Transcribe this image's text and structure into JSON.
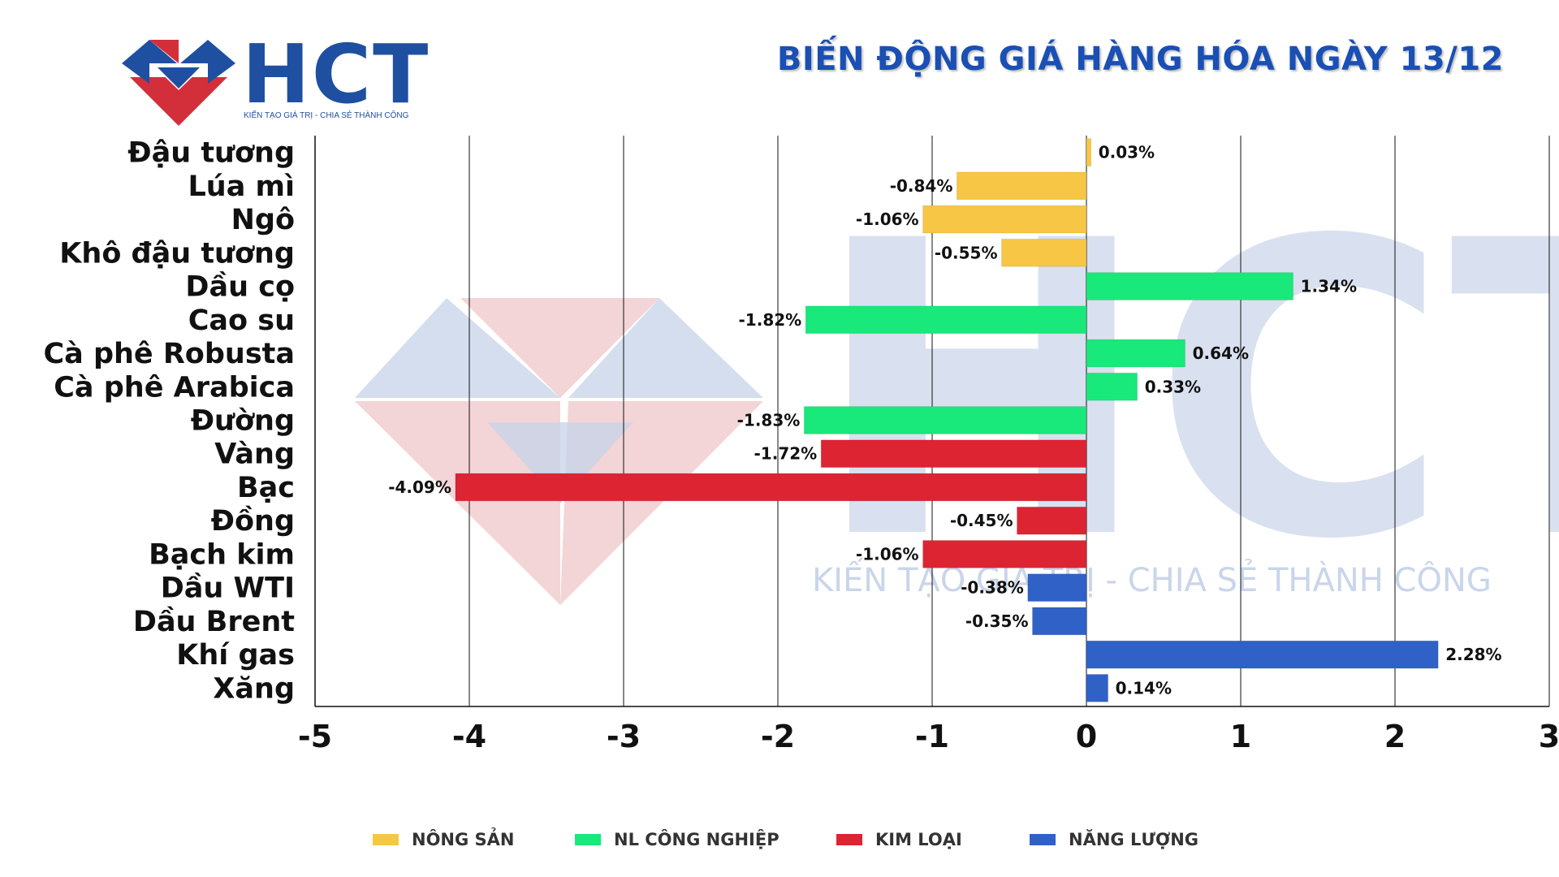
{
  "logo": {
    "text": "HCT",
    "tagline": "KIẾN TẠO GIÁ TRỊ - CHIA SẺ THÀNH CÔNG",
    "colors": {
      "blue": "#1f4fa0",
      "red": "#d32f3a"
    }
  },
  "title": "BIẾN ĐỘNG GIÁ HÀNG HÓA NGÀY 13/12",
  "watermark": {
    "text": "KIẾN TẠO GIÁ TRỊ - CHIA SẺ THÀNH CÔNG"
  },
  "legend": [
    {
      "label": "NÔNG SẢN",
      "color": "#f6c644"
    },
    {
      "label": "NL CÔNG NGHIỆP",
      "color": "#19e87a"
    },
    {
      "label": "KIM LOẠI",
      "color": "#dc2433"
    },
    {
      "label": "NĂNG LƯỢNG",
      "color": "#3061c6"
    }
  ],
  "chart_data": {
    "type": "bar",
    "orientation": "horizontal",
    "categories": [
      "Đậu tương",
      "Lúa mì",
      "Ngô",
      "Khô đậu tương",
      "Dầu cọ",
      "Cao su",
      "Cà phê Robusta",
      "Cà phê Arabica",
      "Đường",
      "Vàng",
      "Bạc",
      "Đồng",
      "Bạch kim",
      "Dầu WTI",
      "Dầu Brent",
      "Khí gas",
      "Xăng"
    ],
    "values": [
      0.03,
      -0.84,
      -1.06,
      -0.55,
      1.34,
      -1.82,
      0.64,
      0.33,
      -1.83,
      -1.72,
      -4.09,
      -0.45,
      -1.06,
      -0.38,
      -0.35,
      2.28,
      0.14
    ],
    "data_labels": [
      "0.03%",
      "-0.84%",
      "-1.06%",
      "-0.55%",
      "1.34%",
      "-1.82%",
      "0.64%",
      "0.33%",
      "-1.83%",
      "-1.72%",
      "-4.09%",
      "-0.45%",
      "-1.06%",
      "-0.38%",
      "-0.35%",
      "2.28%",
      "0.14%"
    ],
    "groups": [
      "NÔNG SẢN",
      "NÔNG SẢN",
      "NÔNG SẢN",
      "NÔNG SẢN",
      "NL CÔNG NGHIỆP",
      "NL CÔNG NGHIỆP",
      "NL CÔNG NGHIỆP",
      "NL CÔNG NGHIỆP",
      "NL CÔNG NGHIỆP",
      "KIM LOẠI",
      "KIM LOẠI",
      "KIM LOẠI",
      "KIM LOẠI",
      "NĂNG LƯỢNG",
      "NĂNG LƯỢNG",
      "NĂNG LƯỢNG",
      "NĂNG LƯỢNG"
    ],
    "xlim": [
      -5,
      3
    ],
    "xticks": [
      -5,
      -4,
      -3,
      -2,
      -1,
      0,
      1,
      2,
      3
    ],
    "xtick_labels": [
      "-5",
      "-4",
      "-3",
      "-2",
      "-1",
      "0",
      "1",
      "2",
      "3"
    ],
    "grid": "vertical",
    "legend_position": "bottom"
  }
}
